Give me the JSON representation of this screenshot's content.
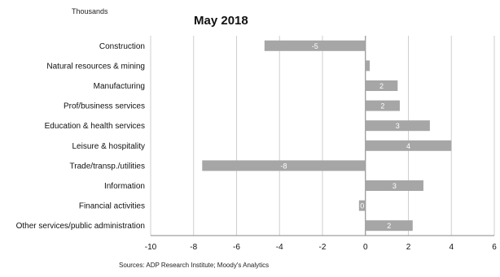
{
  "chart_data": {
    "type": "bar",
    "orientation": "horizontal",
    "title": "May 2018",
    "unit_label": "Thousands",
    "source": "Sources: ADP Research Institute; Moody's Analytics",
    "categories": [
      "Construction",
      "Natural resources & mining",
      "Manufacturing",
      "Prof/business services",
      "Education & health services",
      "Leisure & hospitality",
      "Trade/transp./utilities",
      "Information",
      "Financial activities",
      "Other services/public administration"
    ],
    "values": [
      -4.7,
      0.2,
      1.5,
      1.6,
      3.0,
      4.0,
      -7.6,
      2.7,
      -0.3,
      2.2
    ],
    "data_labels": [
      "-5",
      "",
      "2",
      "2",
      "3",
      "4",
      "-8",
      "3",
      "0",
      "2"
    ],
    "xlim": [
      -10,
      6
    ],
    "xticks": [
      -10,
      -8,
      -6,
      -4,
      -2,
      0,
      2,
      4,
      6
    ],
    "grid": true,
    "bar_color": "#a6a6a6",
    "grid_color": "#cfcfcf"
  }
}
